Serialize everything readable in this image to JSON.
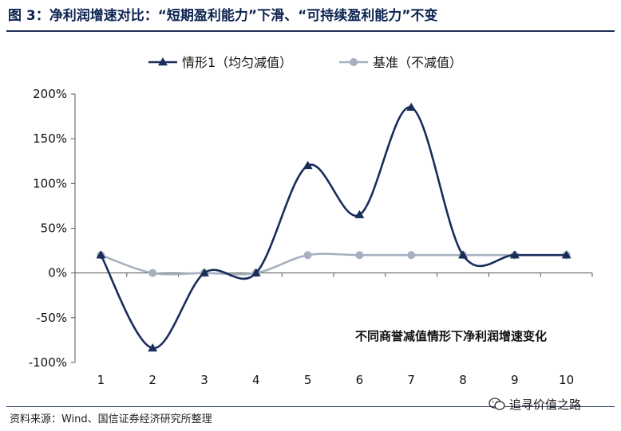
{
  "figure": {
    "title": "图 3：净利润增速对比：“短期盈利能力”下滑、“可持续盈利能力”不变",
    "source": "资料来源：Wind、国信证券经济研究所整理",
    "watermark": "追寻价值之路",
    "watermark_icon": "wechat-icon"
  },
  "chart_data": {
    "type": "line",
    "x": [
      1,
      2,
      3,
      4,
      5,
      6,
      7,
      8,
      9,
      10
    ],
    "series": [
      {
        "name": "情形1（均匀减值）",
        "values": [
          20,
          -84,
          0,
          0,
          120,
          65,
          185,
          20,
          20,
          20
        ],
        "color": "#1a2d5a",
        "marker": "triangle",
        "smooth": true
      },
      {
        "name": "基准（不减值）",
        "values": [
          20,
          0,
          0,
          0,
          20,
          20,
          20,
          20,
          20,
          20
        ],
        "color": "#a6b0bf",
        "marker": "circle",
        "smooth": true
      }
    ],
    "ylim": [
      -100,
      200
    ],
    "yticks": [
      -100,
      -50,
      0,
      50,
      100,
      150,
      200
    ],
    "ytick_labels": [
      "-100%",
      "-50%",
      "0%",
      "50%",
      "100%",
      "150%",
      "200%"
    ],
    "xtick_labels": [
      "1",
      "2",
      "3",
      "4",
      "5",
      "6",
      "7",
      "8",
      "9",
      "10"
    ],
    "annotation": "不同商誉减值情形下净利润增速变化",
    "title": "",
    "xlabel": "",
    "ylabel": "",
    "legend_position": "top-center",
    "grid": false
  }
}
